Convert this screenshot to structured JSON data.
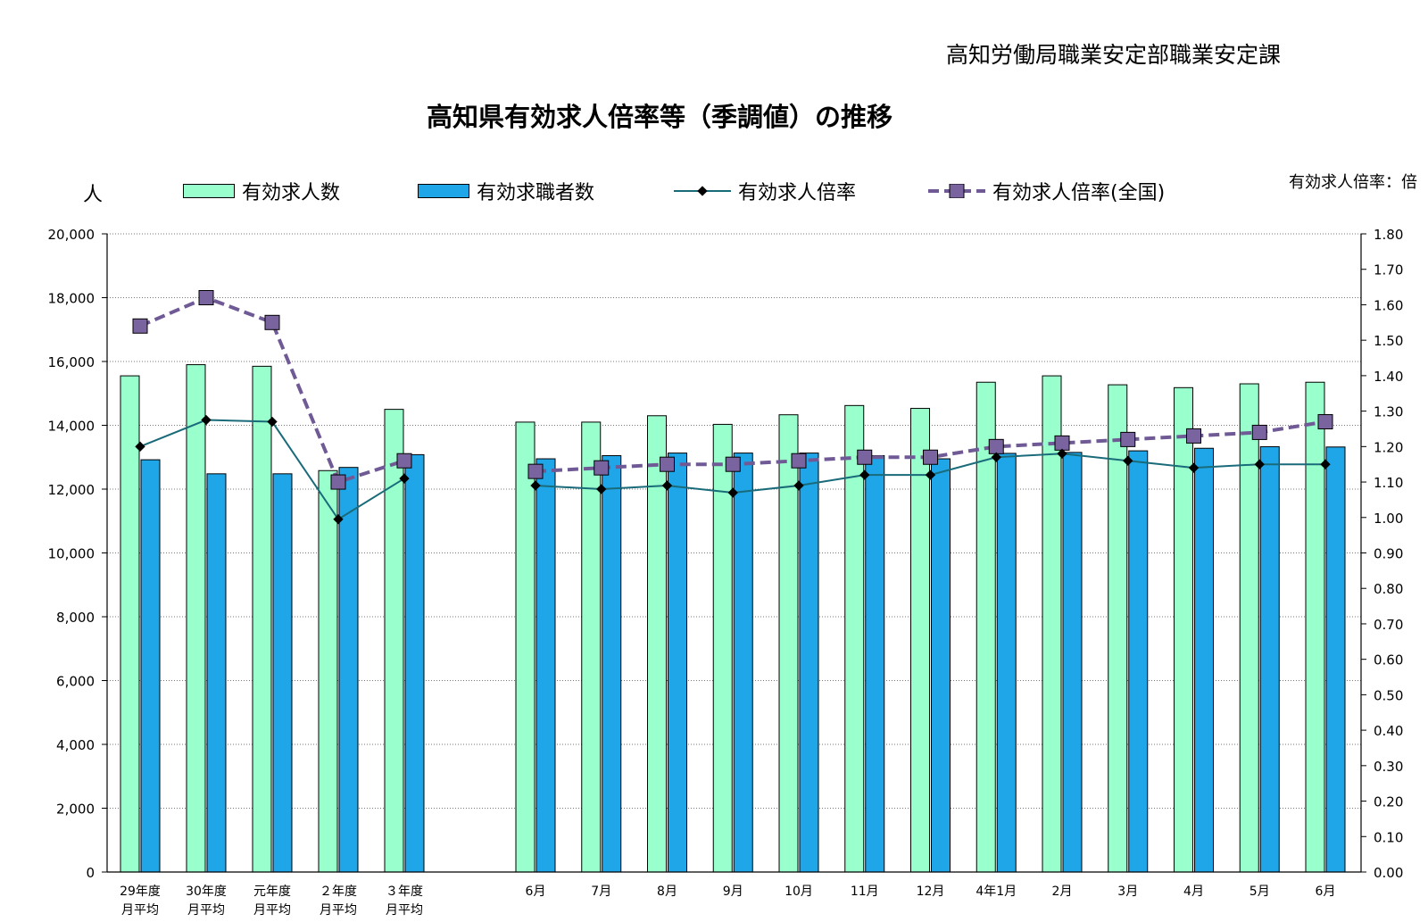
{
  "header": {
    "department": "高知労働局職業安定部職業安定課",
    "title": "高知県有効求人倍率等（季調値）の推移",
    "unit_left": "人",
    "unit_right": "有効求人倍率：倍"
  },
  "legend": {
    "job_offers": "有効求人数",
    "job_seekers": "有効求職者数",
    "ratio_kochi": "有効求人倍率",
    "ratio_national": "有効求人倍率(全国)"
  },
  "colors": {
    "job_offers": "#99ffcc",
    "job_seekers": "#1fa6e8",
    "ratio_kochi": "#1a6b7a",
    "ratio_national": "#6f5a96",
    "marker_national": "#7a64a0"
  },
  "chart_data": {
    "type": "bar",
    "categories": [
      [
        "29年度",
        "月平均"
      ],
      [
        "30年度",
        "月平均"
      ],
      [
        "元年度",
        "月平均"
      ],
      [
        "２年度",
        "月平均"
      ],
      [
        "３年度",
        "月平均"
      ],
      [
        "6月"
      ],
      [
        "7月"
      ],
      [
        "8月"
      ],
      [
        "9月"
      ],
      [
        "10月"
      ],
      [
        "11月"
      ],
      [
        "12月"
      ],
      [
        "4年1月"
      ],
      [
        "2月"
      ],
      [
        "3月"
      ],
      [
        "4月"
      ],
      [
        "5月"
      ],
      [
        "6月"
      ]
    ],
    "y_left": {
      "label": "人",
      "ylim": [
        0,
        20000
      ],
      "ticks": [
        "0",
        "2,000",
        "4,000",
        "6,000",
        "8,000",
        "10,000",
        "12,000",
        "14,000",
        "16,000",
        "18,000",
        "20,000"
      ]
    },
    "y_right": {
      "label": "有効求人倍率：倍",
      "ylim": [
        0,
        1.8
      ],
      "ticks": [
        "0.00",
        "0.10",
        "0.20",
        "0.30",
        "0.40",
        "0.50",
        "0.60",
        "0.70",
        "0.80",
        "0.90",
        "1.00",
        "1.10",
        "1.20",
        "1.30",
        "1.40",
        "1.50",
        "1.60",
        "1.70",
        "1.80"
      ]
    },
    "series": [
      {
        "name": "有効求人数",
        "type": "bar",
        "axis": "left",
        "values": [
          15550,
          15900,
          15850,
          12580,
          14500,
          14100,
          14100,
          14300,
          14030,
          14330,
          14620,
          14530,
          15350,
          15550,
          15270,
          15180,
          15300,
          15350
        ]
      },
      {
        "name": "有効求職者数",
        "type": "bar",
        "axis": "left",
        "values": [
          12920,
          12480,
          12480,
          12680,
          13080,
          12950,
          13050,
          13130,
          13130,
          13130,
          13050,
          12950,
          13120,
          13150,
          13200,
          13280,
          13330,
          13320
        ]
      },
      {
        "name": "有効求人倍率",
        "type": "line",
        "axis": "right",
        "values": [
          1.2,
          1.275,
          1.27,
          0.995,
          1.11,
          1.09,
          1.08,
          1.09,
          1.07,
          1.09,
          1.12,
          1.12,
          1.17,
          1.18,
          1.16,
          1.14,
          1.15,
          1.15
        ]
      },
      {
        "name": "有効求人倍率(全国)",
        "type": "line",
        "axis": "right",
        "values": [
          1.54,
          1.62,
          1.55,
          1.1,
          1.16,
          1.13,
          1.14,
          1.15,
          1.15,
          1.16,
          1.17,
          1.17,
          1.2,
          1.21,
          1.22,
          1.23,
          1.24,
          1.27
        ]
      }
    ],
    "grid": true,
    "legend_position": "top"
  }
}
